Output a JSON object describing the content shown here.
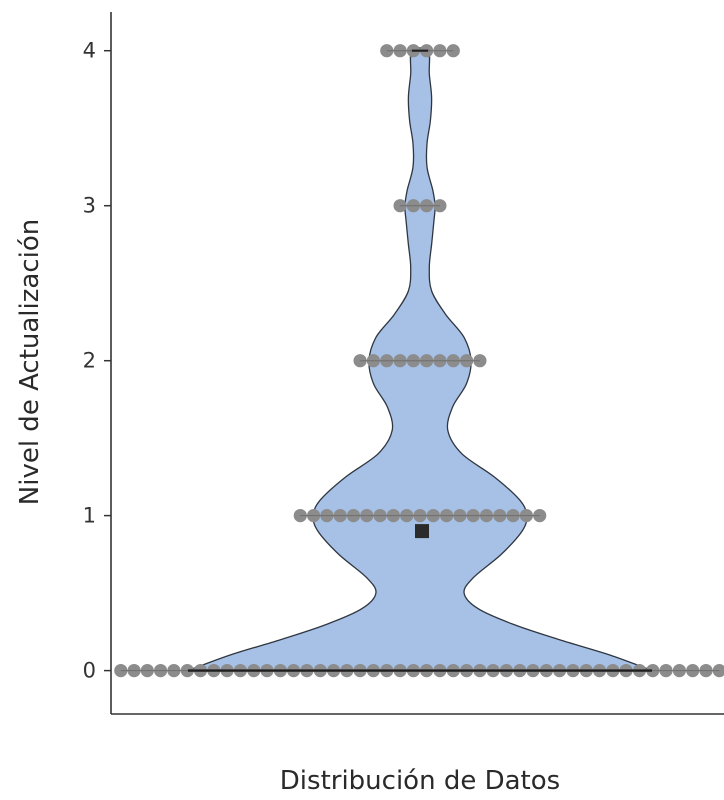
{
  "chart_data": {
    "type": "violin",
    "xlabel": "Distribución de Datos",
    "ylabel": "Nivel de Actualización",
    "ylim": [
      -0.28,
      4.25
    ],
    "y_ticks": [
      "0",
      "1",
      "2",
      "3",
      "4"
    ],
    "grid": false,
    "violin_fill": "#a6c0e6",
    "violin_stroke": "#2f3640",
    "dot_color": "#8c8c8c",
    "mean_marker_color": "#2b2b2b",
    "mean": 0.9,
    "density": [
      [
        0.0,
        1.0
      ],
      [
        0.1,
        0.82
      ],
      [
        0.2,
        0.6
      ],
      [
        0.3,
        0.4
      ],
      [
        0.4,
        0.25
      ],
      [
        0.5,
        0.19
      ],
      [
        0.6,
        0.23
      ],
      [
        0.75,
        0.35
      ],
      [
        0.9,
        0.44
      ],
      [
        1.0,
        0.46
      ],
      [
        1.1,
        0.43
      ],
      [
        1.25,
        0.32
      ],
      [
        1.4,
        0.18
      ],
      [
        1.55,
        0.12
      ],
      [
        1.7,
        0.14
      ],
      [
        1.85,
        0.2
      ],
      [
        2.0,
        0.22
      ],
      [
        2.15,
        0.19
      ],
      [
        2.3,
        0.11
      ],
      [
        2.45,
        0.05
      ],
      [
        2.6,
        0.04
      ],
      [
        2.75,
        0.05
      ],
      [
        2.9,
        0.06
      ],
      [
        3.0,
        0.065
      ],
      [
        3.1,
        0.055
      ],
      [
        3.25,
        0.03
      ],
      [
        3.4,
        0.03
      ],
      [
        3.55,
        0.045
      ],
      [
        3.7,
        0.05
      ],
      [
        3.85,
        0.04
      ],
      [
        4.0,
        0.035
      ]
    ],
    "dots": [
      {
        "y": 0,
        "count": 46
      },
      {
        "y": 1,
        "count": 19
      },
      {
        "y": 2,
        "count": 10
      },
      {
        "y": 3,
        "count": 4
      },
      {
        "y": 4,
        "count": 6
      }
    ]
  }
}
